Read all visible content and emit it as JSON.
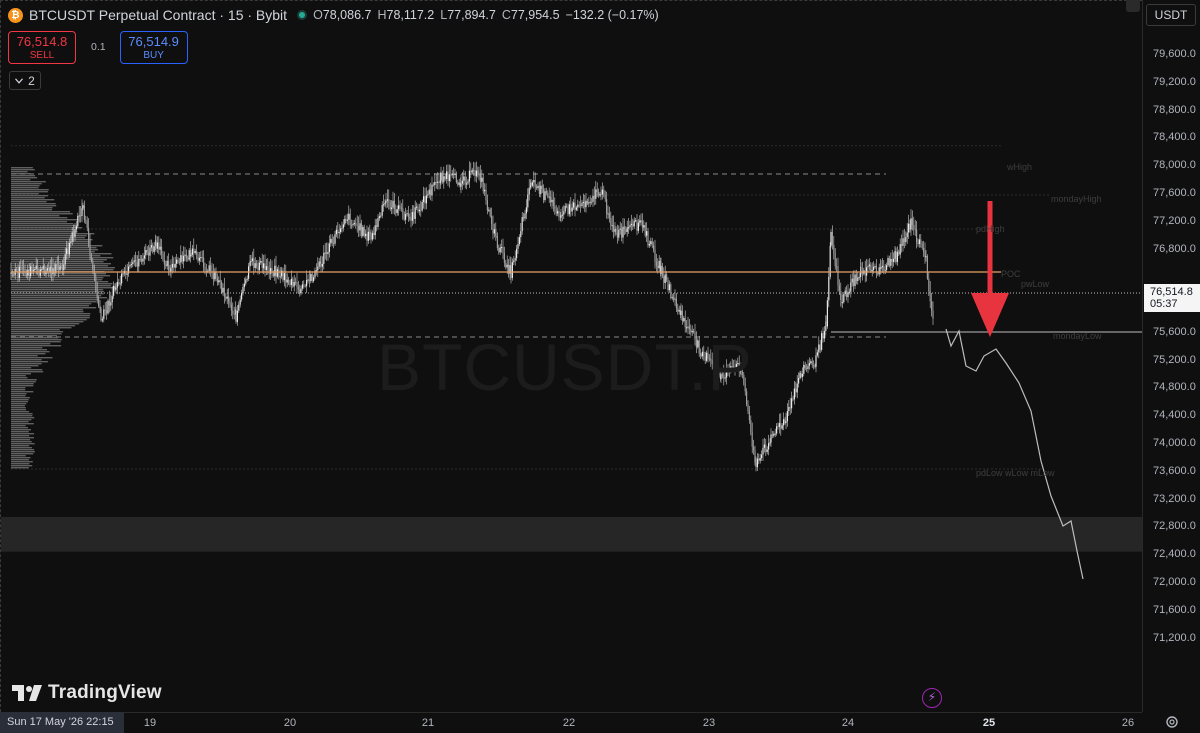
{
  "header": {
    "symbol_title": "BTCUSDT Perpetual Contract · 15 · Bybit",
    "ohlc": [
      {
        "key": "O",
        "value": "78,086.7"
      },
      {
        "key": "H",
        "value": "78,117.2"
      },
      {
        "key": "L",
        "value": "77,894.7"
      },
      {
        "key": "C",
        "value": "77,954.5"
      }
    ],
    "change": "−132.2 (−0.17%)",
    "coin_icon": "bitcoin-icon"
  },
  "trade": {
    "sell_price": "76,514.8",
    "sell_label": "SELL",
    "spread": "0.1",
    "buy_price": "76,514.9",
    "buy_label": "BUY"
  },
  "indicators_toggle": {
    "count": "2"
  },
  "currency": "USDT",
  "last_price": {
    "price": "76,514.8",
    "countdown": "05:37"
  },
  "price_axis": [
    "79,600.0",
    "79,200.0",
    "78,800.0",
    "78,400.0",
    "78,000.0",
    "77,600.0",
    "77,200.0",
    "76,800.0",
    "76,000.0",
    "75,600.0",
    "75,200.0",
    "74,800.0",
    "74,400.0",
    "74,000.0",
    "73,600.0",
    "73,200.0",
    "72,800.0",
    "72,400.0",
    "72,000.0",
    "71,600.0",
    "71,200.0"
  ],
  "time_axis": [
    "19",
    "20",
    "21",
    "22",
    "23",
    "24",
    "25",
    "26"
  ],
  "time_cursor": "Sun 17 May '26   22:15",
  "watermark": "BTCUSDT.P",
  "brand": "TradingView",
  "levels": {
    "wHigh": "wHigh",
    "mondayHigh": "mondayHigh",
    "pdHigh": "pdHigh",
    "poc": "POC",
    "pwLow": "pwLow",
    "mondayLow": "mondayLow",
    "lows": "pdLow wLow mLow"
  },
  "colors": {
    "background": "#0f0f0f",
    "candle": "#d9d9d9",
    "poc_line": "#e0a060",
    "arrow": "#e8343f",
    "sell": "#f23645",
    "buy": "#2962ff"
  },
  "chart_data": {
    "type": "line",
    "title": "BTCUSDT Perpetual Contract · 15 · Bybit",
    "xlabel": "",
    "ylabel": "",
    "x": [
      "19",
      "20",
      "21",
      "22",
      "23",
      "24",
      "25"
    ],
    "series": [
      {
        "values": [
          76400,
          76800,
          77900,
          77600,
          75000,
          77000,
          76514.8
        ]
      }
    ],
    "ylim": [
      71000,
      79800
    ],
    "levels": {
      "wHigh": 78150,
      "mondayHigh": 77750,
      "pdHigh": 77300,
      "POC": 76800,
      "pwLow": 76500,
      "mondayLow": 75950,
      "pdLow_wLow_mLow": 74250
    },
    "projection": [
      76000,
      75700,
      75800,
      74900,
      73600,
      72800
    ],
    "zone": [
      72450,
      72950
    ],
    "grid": false,
    "legend": "none"
  }
}
